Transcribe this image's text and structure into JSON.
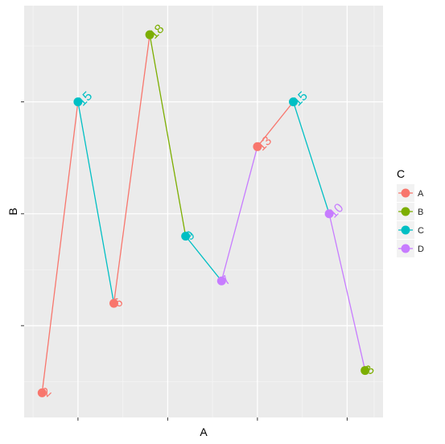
{
  "chart_data": {
    "type": "line",
    "xlabel": "A",
    "ylabel": "B",
    "legend": {
      "title": "C",
      "placement": "right",
      "entries": [
        {
          "label": "A",
          "color": "#F8766D"
        },
        {
          "label": "B",
          "color": "#7CAE00"
        },
        {
          "label": "C",
          "color": "#00BFC4"
        },
        {
          "label": "D",
          "color": "#C77CFF"
        }
      ]
    },
    "grid": true,
    "xlim": [
      0.5,
      10.5
    ],
    "ylim": [
      0.9,
      19.3
    ],
    "points": [
      {
        "x": 1,
        "y": 2,
        "label": "2",
        "group": "A"
      },
      {
        "x": 2,
        "y": 15,
        "label": "15",
        "group": "C"
      },
      {
        "x": 3,
        "y": 6,
        "label": "6",
        "group": "A"
      },
      {
        "x": 4,
        "y": 18,
        "label": "18",
        "group": "B"
      },
      {
        "x": 5,
        "y": 9,
        "label": "9",
        "group": "C"
      },
      {
        "x": 6,
        "y": 7,
        "label": "7",
        "group": "D"
      },
      {
        "x": 7,
        "y": 13,
        "label": "13",
        "group": "A"
      },
      {
        "x": 8,
        "y": 15,
        "label": "15",
        "group": "C"
      },
      {
        "x": 9,
        "y": 10,
        "label": "10",
        "group": "D"
      },
      {
        "x": 10,
        "y": 3,
        "label": "3",
        "group": "B"
      }
    ]
  }
}
